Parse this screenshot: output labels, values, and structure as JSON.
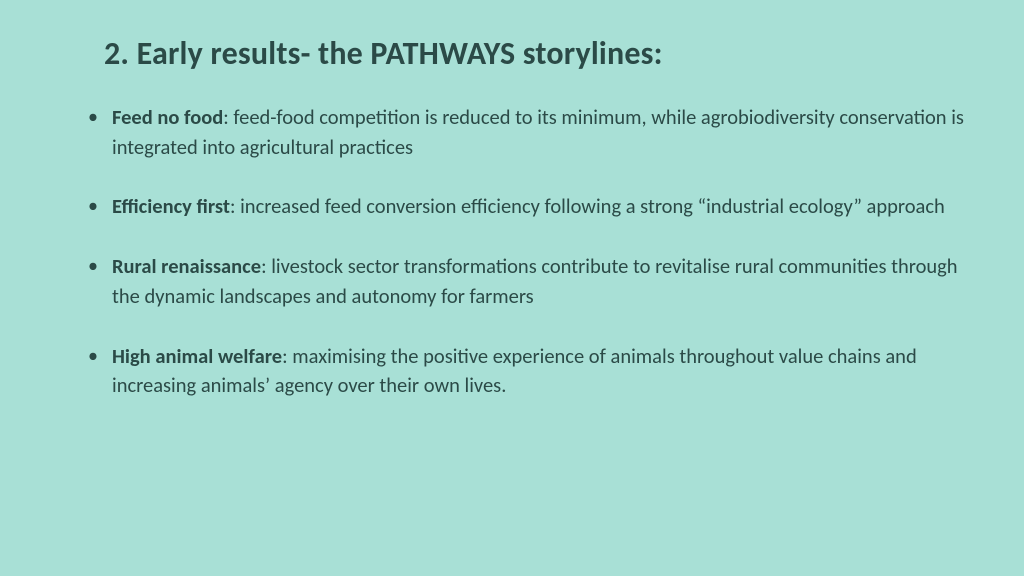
{
  "background_color": "#a8e0d6",
  "text_color": "#2b4a47",
  "title": "2. Early results- the PATHWAYS storylines:",
  "title_fontsize": 32,
  "body_fontsize": 20.5,
  "line_height": 1.45,
  "bullets": [
    {
      "term": "Feed no food",
      "desc": ": feed-food competition is reduced to its minimum, while agrobiodiversity conservation is integrated into agricultural practices"
    },
    {
      "term": "Efficiency first",
      "desc": ": increased feed conversion efficiency following a strong “industrial ecology” approach"
    },
    {
      "term": "Rural renaissance",
      "desc": ": livestock sector transformations contribute to revitalise rural communities through the dynamic landscapes and autonomy for farmers"
    },
    {
      "term": "High animal welfare",
      "desc": ": maximising the positive experience of animals throughout value chains and increasing animals’ agency over their own lives."
    }
  ]
}
